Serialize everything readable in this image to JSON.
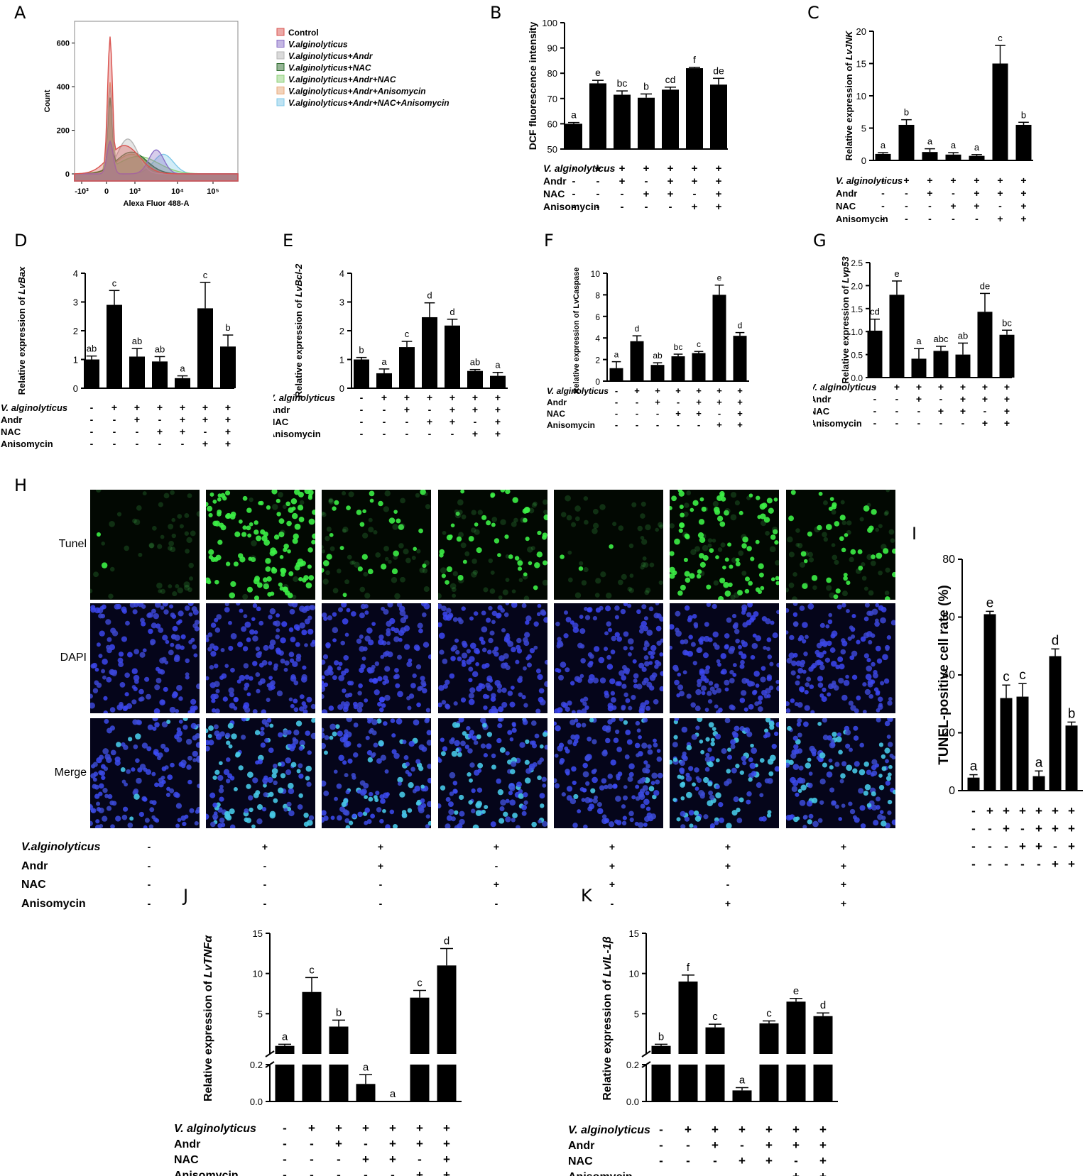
{
  "panel_letters": [
    "A",
    "B",
    "C",
    "D",
    "E",
    "F",
    "G",
    "H",
    "I",
    "J",
    "K"
  ],
  "flow": {
    "legend": [
      {
        "label": "Control",
        "color": "#d9534f",
        "italic": false
      },
      {
        "label": "V.alginolyticus",
        "color": "#8a6fc7",
        "italic": true
      },
      {
        "label": "V.alginolyticus+Andr",
        "color": "#b5b5b5",
        "italic": true
      },
      {
        "label": "V.alginolyticus+NAC",
        "color": "#2e6b2e",
        "italic": true
      },
      {
        "label": "V.alginolyticus+Andr+NAC",
        "color": "#8fd17a",
        "italic": true
      },
      {
        "label": "V.alginolyticus+Andr+Anisomycin",
        "color": "#e8a878",
        "italic": true
      },
      {
        "label": "V.alginolyticus+Andr+NAC+Anisomycin",
        "color": "#7fc8e8",
        "italic": true
      }
    ],
    "xlabel": "Alexa Fluor 488-A",
    "ylabel": "Count",
    "yticks": [
      "0",
      "200",
      "400",
      "600"
    ],
    "xticks": [
      "-10³",
      "0",
      "10³",
      "10⁴",
      "10⁵"
    ]
  },
  "treatments": {
    "names": [
      "V. alginolyticus",
      "Andr",
      "NAC",
      "Anisomycin"
    ],
    "names_h": [
      "V.alginolyticus",
      "Andr",
      "NAC",
      "Anisomycin"
    ],
    "rows": [
      [
        "-",
        "+",
        "+",
        "+",
        "+",
        "+",
        "+"
      ],
      [
        "-",
        "-",
        "+",
        "-",
        "+",
        "+",
        "+"
      ],
      [
        "-",
        "-",
        "-",
        "+",
        "+",
        "-",
        "+"
      ],
      [
        "-",
        "-",
        "-",
        "-",
        "-",
        "+",
        "+"
      ]
    ]
  },
  "micro": {
    "row_labels": [
      "Tunel",
      "DAPI",
      "Merge"
    ],
    "tunel_density": [
      0.1,
      0.9,
      0.4,
      0.5,
      0.1,
      0.75,
      0.45
    ]
  },
  "chart_data": [
    {
      "panel": "B",
      "type": "bar",
      "ylabel": "DCF fluorescence intensity",
      "ylim": [
        50,
        100
      ],
      "yticks": [
        50,
        60,
        70,
        80,
        90,
        100
      ],
      "values": [
        60,
        76,
        71.5,
        70.3,
        73.5,
        82,
        75.5
      ],
      "errors": [
        0.5,
        1.2,
        1.5,
        1.5,
        1,
        0.3,
        2.5
      ],
      "letters": [
        "a",
        "e",
        "bc",
        "b",
        "cd",
        "f",
        "de"
      ]
    },
    {
      "panel": "C",
      "type": "bar",
      "ylabel_pre": "Relative expression of ",
      "ylabel_gene": "LvJNK",
      "ylim": [
        0,
        20
      ],
      "yticks": [
        0,
        5,
        10,
        15,
        20
      ],
      "values": [
        1,
        5.5,
        1.3,
        0.9,
        0.7,
        15,
        5.5
      ],
      "errors": [
        0.2,
        0.8,
        0.5,
        0.3,
        0.2,
        2.8,
        0.4
      ],
      "letters": [
        "a",
        "b",
        "a",
        "a",
        "a",
        "c",
        "b"
      ]
    },
    {
      "panel": "D",
      "type": "bar",
      "ylabel_pre": "Relative expression of ",
      "ylabel_gene": "LvBax",
      "ylim": [
        0,
        4
      ],
      "yticks": [
        0,
        1,
        2,
        3,
        4
      ],
      "values": [
        1,
        2.9,
        1.1,
        0.93,
        0.35,
        2.78,
        1.45
      ],
      "errors": [
        0.12,
        0.5,
        0.28,
        0.17,
        0.08,
        0.9,
        0.4
      ],
      "letters": [
        "ab",
        "c",
        "ab",
        "ab",
        "a",
        "c",
        "b"
      ]
    },
    {
      "panel": "E",
      "type": "bar",
      "ylabel_pre": "Relative expression of ",
      "ylabel_gene": "LvBcl-2",
      "ylim": [
        0,
        4
      ],
      "yticks": [
        0,
        1,
        2,
        3,
        4
      ],
      "values": [
        1,
        0.52,
        1.43,
        2.47,
        2.18,
        0.6,
        0.43
      ],
      "errors": [
        0.07,
        0.15,
        0.2,
        0.5,
        0.22,
        0.05,
        0.12
      ],
      "letters": [
        "b",
        "a",
        "c",
        "d",
        "d",
        "ab",
        "a"
      ]
    },
    {
      "panel": "F",
      "type": "bar",
      "ylabel": "Relative expression of LvCaspase 3",
      "ylim": [
        0,
        10
      ],
      "yticks": [
        0,
        2,
        4,
        6,
        8,
        10
      ],
      "values": [
        1.2,
        3.7,
        1.5,
        2.3,
        2.6,
        8,
        4.2
      ],
      "errors": [
        0.6,
        0.5,
        0.2,
        0.2,
        0.15,
        0.9,
        0.3
      ],
      "letters": [
        "a",
        "d",
        "ab",
        "bc",
        "c",
        "e",
        "d"
      ]
    },
    {
      "panel": "G",
      "type": "bar",
      "ylabel_pre": "Relative expression of ",
      "ylabel_gene": "Lvp53",
      "ylim": [
        0,
        2.5
      ],
      "yticks": [
        "0.0",
        "0.5",
        "1.0",
        "1.5",
        "2.0",
        "2.5"
      ],
      "values": [
        1.02,
        1.8,
        0.41,
        0.58,
        0.5,
        1.43,
        0.93
      ],
      "errors": [
        0.25,
        0.3,
        0.22,
        0.1,
        0.25,
        0.4,
        0.1
      ],
      "letters": [
        "cd",
        "e",
        "a",
        "abc",
        "ab",
        "de",
        "bc"
      ]
    },
    {
      "panel": "I",
      "type": "bar",
      "ylabel": "TUNEL-positive cell rate (%)",
      "ylim": [
        0,
        80
      ],
      "yticks": [
        0,
        20,
        40,
        60,
        80
      ],
      "values": [
        4.5,
        61,
        32,
        32.5,
        5,
        46.5,
        22.5
      ],
      "errors": [
        1,
        1,
        4.5,
        4.5,
        1.8,
        2.5,
        1.2
      ],
      "letters": [
        "a",
        "e",
        "c",
        "c",
        "a",
        "d",
        "b"
      ]
    },
    {
      "panel": "J",
      "type": "bar",
      "ylabel_pre": "Relative expression of ",
      "ylabel_gene": "LvTNFα",
      "broken_axis": true,
      "upper_ticks": [
        5,
        10,
        15
      ],
      "lower_ticks": [
        "0.0",
        "0.2"
      ],
      "values": [
        1,
        7.7,
        3.4,
        0.095,
        0,
        7,
        11
      ],
      "errors": [
        0.2,
        1.8,
        0.8,
        0.05,
        0,
        0.9,
        2.1
      ],
      "letters": [
        "a",
        "c",
        "b",
        "a",
        "a",
        "c",
        "d"
      ]
    },
    {
      "panel": "K",
      "type": "bar",
      "ylabel_pre": "Relative expression of ",
      "ylabel_gene": "LvIL-1β",
      "broken_axis": true,
      "upper_ticks": [
        5,
        10,
        15
      ],
      "lower_ticks": [
        "0.0",
        "0.2"
      ],
      "values": [
        1,
        9,
        3.3,
        0.06,
        3.8,
        6.5,
        4.7
      ],
      "errors": [
        0.2,
        0.8,
        0.4,
        0.015,
        0.3,
        0.4,
        0.4
      ],
      "letters": [
        "b",
        "f",
        "c",
        "a",
        "c",
        "e",
        "d"
      ]
    }
  ]
}
